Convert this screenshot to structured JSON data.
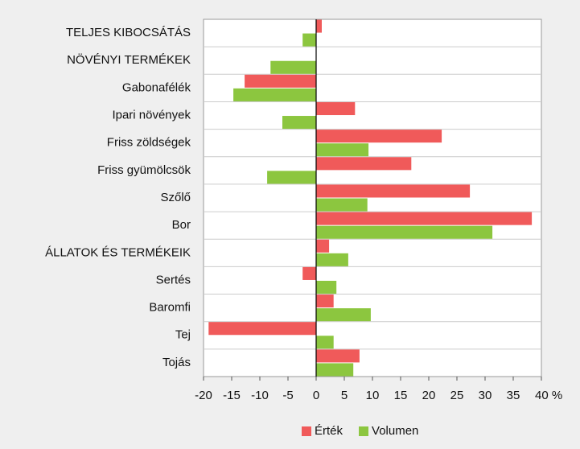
{
  "chart_data": {
    "type": "bar",
    "orientation": "horizontal",
    "categories": [
      "TELJES KIBOCSÁTÁS",
      "NÖVÉNYI TERMÉKEK",
      "Gabonafélék",
      "Ipari növények",
      "Friss zöldségek",
      "Friss gyümölcsök",
      "Szőlő",
      "Bor",
      "ÁLLATOK ÉS TERMÉKEIK",
      "Sertés",
      "Baromfi",
      "Tej",
      "Tojás"
    ],
    "series": [
      {
        "name": "Érték",
        "color": "#f05a5a",
        "values": [
          1.0,
          0,
          -12.7,
          6.9,
          22.3,
          16.9,
          27.3,
          38.3,
          2.3,
          -2.4,
          3.1,
          -19.1,
          7.7
        ]
      },
      {
        "name": "Volumen",
        "color": "#8cc63f",
        "values": [
          -2.4,
          -8.1,
          -14.7,
          -6.0,
          9.3,
          -8.7,
          9.1,
          31.3,
          5.7,
          3.6,
          9.7,
          3.1,
          6.6
        ]
      }
    ],
    "xlim": [
      -20,
      40
    ],
    "xticks": [
      -20,
      -15,
      -10,
      -5,
      0,
      5,
      10,
      15,
      20,
      25,
      30,
      35,
      {
        "value": 40,
        "label": "40 %"
      }
    ],
    "legend": "bottom"
  }
}
